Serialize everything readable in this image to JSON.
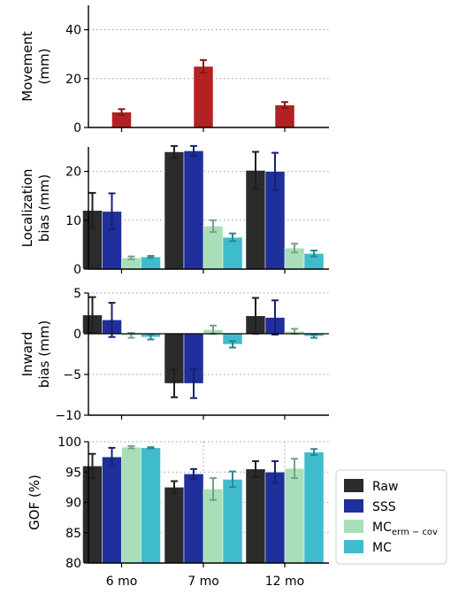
{
  "chart_data": {
    "type": "bar",
    "categories": [
      "6 mo",
      "7 mo",
      "12 mo"
    ],
    "legend": {
      "placement": "right",
      "entries": [
        {
          "label": "Raw",
          "color": "#2b2b2b"
        },
        {
          "label": "SSS",
          "color": "#1f2f9b"
        },
        {
          "label": "MC",
          "sub": "erm − cov",
          "color": "#a8dfb8"
        },
        {
          "label": "MC",
          "color": "#3fbccb"
        }
      ]
    },
    "panels": [
      {
        "ylabel": [
          "Movement",
          "(mm)"
        ],
        "ylim": [
          0,
          50
        ],
        "yticks": [
          0,
          20,
          40
        ],
        "grid": true,
        "series": [
          {
            "values": [
              6.3,
              25.0,
              9.2
            ],
            "errors": [
              1.2,
              2.6,
              1.2
            ],
            "color": "#b22222"
          }
        ]
      },
      {
        "ylabel": [
          "Localization",
          "bias (mm)"
        ],
        "ylim": [
          0,
          25
        ],
        "yticks": [
          0,
          10,
          20
        ],
        "grid": true,
        "series": [
          {
            "name": "Raw",
            "values": [
              12.0,
              24.0,
              20.2
            ],
            "errors": [
              3.6,
              1.2,
              3.8
            ],
            "color": "#2b2b2b"
          },
          {
            "name": "SSS",
            "values": [
              11.8,
              24.2,
              20.0
            ],
            "errors": [
              3.7,
              1.0,
              3.8
            ],
            "color": "#1f2f9b"
          },
          {
            "name": "MC erm-cov",
            "values": [
              2.3,
              8.8,
              4.3
            ],
            "errors": [
              0.3,
              1.2,
              0.9
            ],
            "color": "#a8dfb8"
          },
          {
            "name": "MC",
            "values": [
              2.5,
              6.5,
              3.2
            ],
            "errors": [
              0.2,
              0.8,
              0.6
            ],
            "color": "#3fbccb"
          }
        ]
      },
      {
        "ylabel": [
          "Inward",
          "bias (mm)"
        ],
        "ylim": [
          -10,
          5
        ],
        "yticks": [
          -10,
          -5,
          0,
          5
        ],
        "grid": true,
        "series": [
          {
            "name": "Raw",
            "values": [
              2.3,
              -6.1,
              2.2
            ],
            "errors": [
              2.2,
              1.7,
              2.2
            ],
            "color": "#2b2b2b"
          },
          {
            "name": "SSS",
            "values": [
              1.7,
              -6.1,
              2.0
            ],
            "errors": [
              2.1,
              1.8,
              2.1
            ],
            "color": "#1f2f9b"
          },
          {
            "name": "MC erm-cov",
            "values": [
              -0.2,
              0.5,
              0.3
            ],
            "errors": [
              0.3,
              0.5,
              0.3
            ],
            "color": "#a8dfb8"
          },
          {
            "name": "MC",
            "values": [
              -0.4,
              -1.3,
              -0.3
            ],
            "errors": [
              0.3,
              0.4,
              0.2
            ],
            "color": "#3fbccb"
          }
        ]
      },
      {
        "ylabel": [
          "GOF (%)"
        ],
        "ylim": [
          80,
          100
        ],
        "yticks": [
          80,
          85,
          90,
          95,
          100
        ],
        "grid": true,
        "series": [
          {
            "name": "Raw",
            "values": [
              96.0,
              92.5,
              95.5
            ],
            "errors": [
              2.0,
              1.0,
              1.3
            ],
            "color": "#2b2b2b"
          },
          {
            "name": "SSS",
            "values": [
              97.5,
              94.7,
              95.0
            ],
            "errors": [
              1.5,
              0.8,
              1.8
            ],
            "color": "#1f2f9b"
          },
          {
            "name": "MC erm-cov",
            "values": [
              99.1,
              92.2,
              95.6
            ],
            "errors": [
              0.2,
              1.8,
              1.6
            ],
            "color": "#a8dfb8"
          },
          {
            "name": "MC",
            "values": [
              99.0,
              93.8,
              98.3
            ],
            "errors": [
              0.1,
              1.3,
              0.5
            ],
            "color": "#3fbccb"
          }
        ]
      }
    ]
  }
}
